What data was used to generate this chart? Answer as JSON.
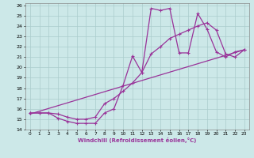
{
  "xlabel": "Windchill (Refroidissement éolien,°C)",
  "bg_color": "#cce8e8",
  "grid_color": "#aacccc",
  "line_color": "#993399",
  "xlim": [
    -0.5,
    23.5
  ],
  "ylim": [
    14,
    26.2
  ],
  "xticks": [
    0,
    1,
    2,
    3,
    4,
    5,
    6,
    7,
    8,
    9,
    10,
    11,
    12,
    13,
    14,
    15,
    16,
    17,
    18,
    19,
    20,
    21,
    22,
    23
  ],
  "yticks": [
    14,
    15,
    16,
    17,
    18,
    19,
    20,
    21,
    22,
    23,
    24,
    25,
    26
  ],
  "line1_x": [
    0,
    1,
    2,
    3,
    4,
    5,
    6,
    7,
    8,
    9,
    10,
    11,
    12,
    13,
    14,
    15,
    16,
    17,
    18,
    19,
    20,
    21,
    22,
    23
  ],
  "line1_y": [
    15.6,
    15.6,
    15.6,
    15.1,
    14.8,
    14.6,
    14.6,
    14.6,
    15.6,
    16.0,
    18.3,
    21.1,
    19.5,
    25.7,
    25.5,
    25.7,
    21.4,
    21.4,
    25.2,
    23.7,
    21.5,
    21.0,
    21.5,
    21.7
  ],
  "line2_x": [
    0,
    1,
    2,
    3,
    4,
    5,
    6,
    7,
    8,
    9,
    10,
    11,
    12,
    13,
    14,
    15,
    16,
    17,
    18,
    19,
    20,
    21,
    22,
    23
  ],
  "line2_y": [
    15.6,
    15.6,
    15.6,
    15.5,
    15.2,
    15.0,
    15.0,
    15.2,
    16.5,
    17.0,
    17.7,
    18.5,
    19.5,
    21.3,
    22.0,
    22.8,
    23.2,
    23.6,
    24.0,
    24.3,
    23.6,
    21.3,
    21.0,
    21.7
  ],
  "line3_x": [
    0,
    23
  ],
  "line3_y": [
    15.5,
    21.7
  ]
}
